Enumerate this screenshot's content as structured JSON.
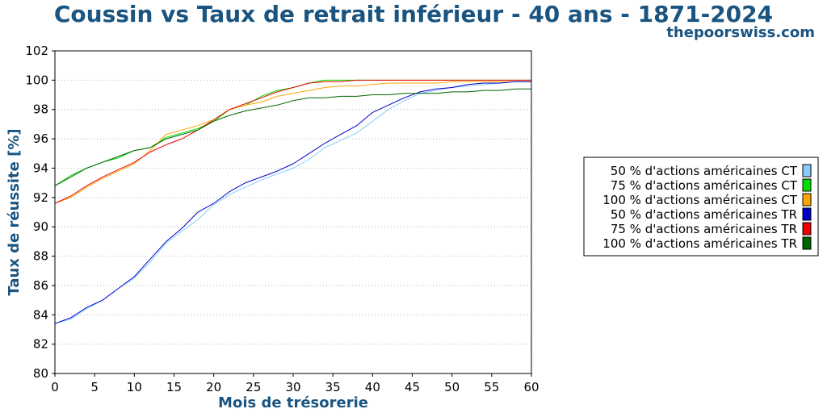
{
  "chart_data": {
    "type": "line",
    "title": "Coussin vs Taux de retrait inférieur - 40 ans - 1871-2024",
    "subtitle": "thepoorswiss.com",
    "xlabel": "Mois de trésorerie",
    "ylabel": "Taux de réussite [%]",
    "xlim": [
      0,
      60
    ],
    "ylim": [
      80,
      102
    ],
    "xticks": [
      0,
      5,
      10,
      15,
      20,
      25,
      30,
      35,
      40,
      45,
      50,
      55,
      60
    ],
    "yticks": [
      80,
      82,
      84,
      86,
      88,
      90,
      92,
      94,
      96,
      98,
      100,
      102
    ],
    "grid": "horizontal dotted",
    "legend_position": "right",
    "x": [
      0,
      2,
      4,
      6,
      8,
      10,
      12,
      14,
      16,
      18,
      20,
      22,
      24,
      26,
      28,
      30,
      32,
      34,
      36,
      38,
      40,
      42,
      44,
      46,
      48,
      50,
      52,
      54,
      56,
      58,
      60
    ],
    "series": [
      {
        "name": "50 % d'actions américaines CT",
        "color": "#87cefa",
        "values": [
          83.4,
          83.7,
          84.4,
          85.0,
          85.8,
          86.5,
          87.6,
          88.9,
          89.7,
          90.5,
          91.5,
          92.2,
          92.7,
          93.2,
          93.6,
          94.0,
          94.6,
          95.4,
          95.9,
          96.4,
          97.2,
          98.0,
          98.6,
          99.1,
          99.3,
          99.5,
          99.6,
          99.7,
          99.8,
          99.9,
          99.9
        ]
      },
      {
        "name": "75 % d'actions américaines CT",
        "color": "#00e000",
        "values": [
          92.8,
          93.5,
          94.0,
          94.4,
          94.7,
          95.2,
          95.4,
          96.1,
          96.4,
          96.7,
          97.2,
          98.0,
          98.3,
          98.9,
          99.3,
          99.5,
          99.8,
          100.0,
          100.0,
          100.0,
          100.0,
          100.0,
          100.0,
          100.0,
          100.0,
          100.0,
          100.0,
          100.0,
          100.0,
          100.0,
          100.0
        ]
      },
      {
        "name": "100 % d'actions américaines CT",
        "color": "#ffa500",
        "values": [
          91.6,
          92.0,
          92.7,
          93.3,
          93.8,
          94.3,
          95.2,
          96.3,
          96.6,
          96.9,
          97.3,
          98.0,
          98.3,
          98.5,
          98.9,
          99.1,
          99.3,
          99.5,
          99.6,
          99.6,
          99.7,
          99.8,
          99.8,
          99.8,
          99.8,
          99.9,
          99.9,
          99.9,
          99.9,
          99.9,
          99.9
        ]
      },
      {
        "name": "50 % d'actions américaines TR",
        "color": "#0000cd",
        "values": [
          83.4,
          83.8,
          84.5,
          85.0,
          85.8,
          86.6,
          87.8,
          89.0,
          89.9,
          91.0,
          91.6,
          92.4,
          93.0,
          93.4,
          93.8,
          94.3,
          95.0,
          95.7,
          96.3,
          96.9,
          97.8,
          98.3,
          98.8,
          99.2,
          99.4,
          99.5,
          99.7,
          99.8,
          99.8,
          99.9,
          99.9
        ]
      },
      {
        "name": "75 % d'actions américaines TR",
        "color": "#ee0000",
        "values": [
          91.6,
          92.1,
          92.8,
          93.4,
          93.9,
          94.4,
          95.1,
          95.6,
          96.0,
          96.6,
          97.3,
          98.0,
          98.4,
          98.8,
          99.2,
          99.5,
          99.8,
          99.9,
          99.9,
          100.0,
          100.0,
          100.0,
          100.0,
          100.0,
          100.0,
          100.0,
          100.0,
          100.0,
          100.0,
          100.0,
          100.0
        ]
      },
      {
        "name": "100 % d'actions américaines TR",
        "color": "#006400",
        "values": [
          92.8,
          93.4,
          94.0,
          94.4,
          94.8,
          95.2,
          95.4,
          96.0,
          96.3,
          96.6,
          97.2,
          97.6,
          97.9,
          98.1,
          98.3,
          98.6,
          98.8,
          98.8,
          98.9,
          98.9,
          99.0,
          99.0,
          99.1,
          99.1,
          99.1,
          99.2,
          99.2,
          99.3,
          99.3,
          99.4,
          99.4
        ]
      }
    ]
  }
}
